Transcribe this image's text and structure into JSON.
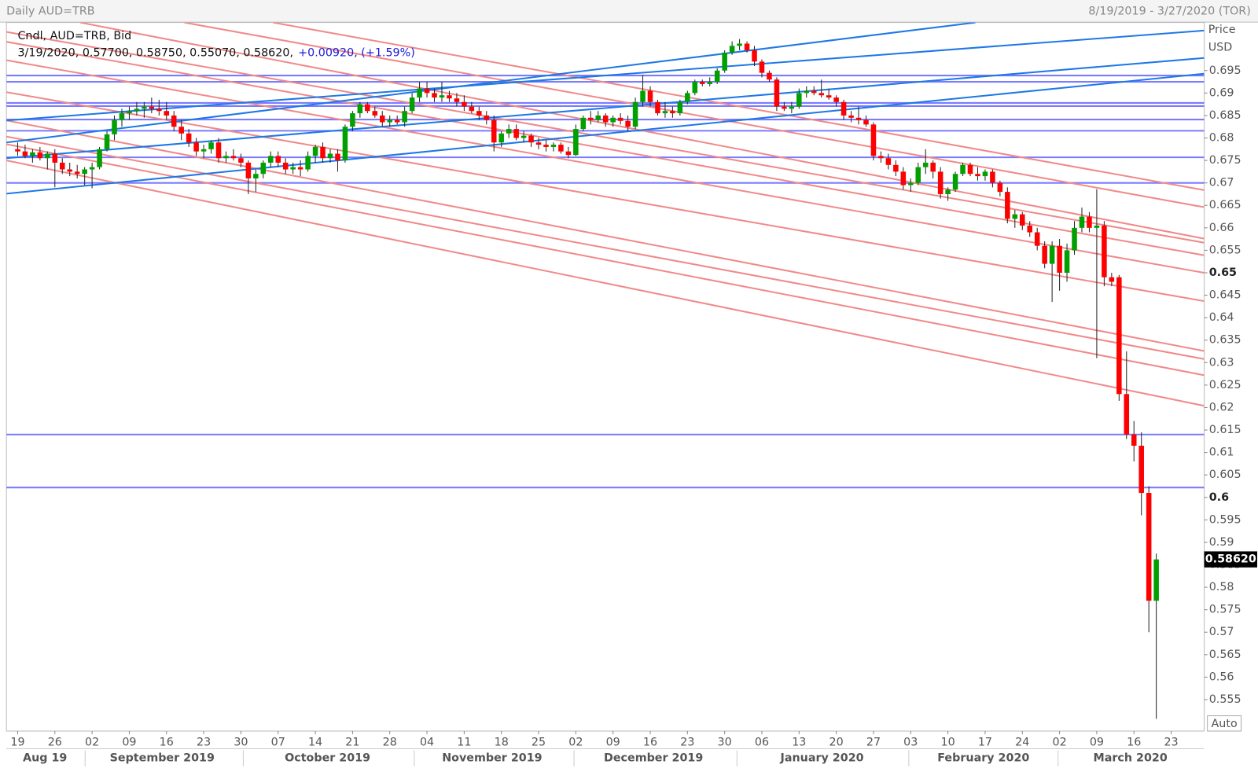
{
  "chart_data": {
    "type": "candlestick",
    "title": "Daily AUD=TRB",
    "date_range": "8/19/2019 - 3/27/2020 (TOR)",
    "legend": "Cndl, AUD=TRB, Bid",
    "info": "3/19/2020, 0.57700, 0.58750, 0.55070, 0.58620,",
    "change": "+0.00920, (+1.59%)",
    "y_label": "Price",
    "unit": "USD",
    "scale_mode": "Auto",
    "x_tick_labels": [
      "19",
      "26",
      "02",
      "09",
      "16",
      "23",
      "30",
      "07",
      "14",
      "21",
      "28",
      "04",
      "11",
      "18",
      "25",
      "02",
      "09",
      "16",
      "23",
      "30",
      "06",
      "13",
      "20",
      "27",
      "03",
      "10",
      "17",
      "24",
      "02",
      "09",
      "16",
      "23"
    ],
    "month_labels": [
      "Aug 19",
      "September 2019",
      "October 2019",
      "November 2019",
      "December 2019",
      "January 2020",
      "February 2020",
      "March 2020"
    ],
    "ylim": [
      0.548,
      0.7057
    ],
    "yticks": [
      0.555,
      0.56,
      0.565,
      0.57,
      0.575,
      0.58,
      0.585,
      0.59,
      0.595,
      0.6,
      0.605,
      0.61,
      0.615,
      0.62,
      0.625,
      0.63,
      0.635,
      0.64,
      0.645,
      0.65,
      0.655,
      0.66,
      0.665,
      0.67,
      0.675,
      0.68,
      0.685,
      0.69,
      0.695
    ],
    "last_price": {
      "value": 0.5862,
      "label": "0.58620"
    },
    "colors": {
      "up": "#00a000",
      "down": "#ff0000",
      "wick": "#222222",
      "level": "#7b7bff",
      "trend_up": "#1e78e6",
      "trend_down": "#f08a8a"
    },
    "ohlc": [
      [
        0.6775,
        0.679,
        0.676,
        0.677
      ],
      [
        0.677,
        0.6785,
        0.6755,
        0.676
      ],
      [
        0.676,
        0.6775,
        0.6745,
        0.6768
      ],
      [
        0.6768,
        0.678,
        0.675,
        0.6755
      ],
      [
        0.6755,
        0.677,
        0.673,
        0.6765
      ],
      [
        0.6765,
        0.6775,
        0.669,
        0.6745
      ],
      [
        0.6745,
        0.6755,
        0.672,
        0.673
      ],
      [
        0.673,
        0.6745,
        0.6715,
        0.6725
      ],
      [
        0.6725,
        0.674,
        0.671,
        0.672
      ],
      [
        0.672,
        0.6735,
        0.6695,
        0.673
      ],
      [
        0.673,
        0.6745,
        0.6688,
        0.6735
      ],
      [
        0.6735,
        0.678,
        0.673,
        0.6775
      ],
      [
        0.6775,
        0.6815,
        0.677,
        0.6808
      ],
      [
        0.6808,
        0.685,
        0.6795,
        0.684
      ],
      [
        0.684,
        0.6865,
        0.6825,
        0.6855
      ],
      [
        0.6855,
        0.687,
        0.684,
        0.686
      ],
      [
        0.686,
        0.688,
        0.685,
        0.6865
      ],
      [
        0.6865,
        0.688,
        0.6845,
        0.687
      ],
      [
        0.687,
        0.689,
        0.6855,
        0.6865
      ],
      [
        0.6865,
        0.6885,
        0.685,
        0.686
      ],
      [
        0.686,
        0.688,
        0.684,
        0.685
      ],
      [
        0.685,
        0.686,
        0.6815,
        0.6825
      ],
      [
        0.6825,
        0.684,
        0.6795,
        0.681
      ],
      [
        0.681,
        0.682,
        0.678,
        0.679
      ],
      [
        0.679,
        0.68,
        0.676,
        0.677
      ],
      [
        0.677,
        0.6785,
        0.6755,
        0.6775
      ],
      [
        0.6775,
        0.6795,
        0.6765,
        0.679
      ],
      [
        0.679,
        0.68,
        0.6745,
        0.6755
      ],
      [
        0.6755,
        0.677,
        0.6745,
        0.676
      ],
      [
        0.676,
        0.6775,
        0.675,
        0.6755
      ],
      [
        0.6755,
        0.6765,
        0.6735,
        0.6745
      ],
      [
        0.6745,
        0.675,
        0.6675,
        0.671
      ],
      [
        0.671,
        0.673,
        0.668,
        0.672
      ],
      [
        0.672,
        0.675,
        0.671,
        0.6745
      ],
      [
        0.6745,
        0.677,
        0.6735,
        0.676
      ],
      [
        0.676,
        0.677,
        0.6735,
        0.6745
      ],
      [
        0.6745,
        0.6755,
        0.672,
        0.673
      ],
      [
        0.673,
        0.6745,
        0.672,
        0.6735
      ],
      [
        0.6735,
        0.675,
        0.6715,
        0.673
      ],
      [
        0.673,
        0.677,
        0.6725,
        0.676
      ],
      [
        0.676,
        0.6785,
        0.6745,
        0.678
      ],
      [
        0.678,
        0.679,
        0.6745,
        0.6755
      ],
      [
        0.6755,
        0.6775,
        0.6745,
        0.6765
      ],
      [
        0.6765,
        0.6775,
        0.6725,
        0.675
      ],
      [
        0.675,
        0.683,
        0.6745,
        0.6825
      ],
      [
        0.6825,
        0.686,
        0.6815,
        0.6855
      ],
      [
        0.6855,
        0.688,
        0.6845,
        0.6875
      ],
      [
        0.6875,
        0.688,
        0.6855,
        0.686
      ],
      [
        0.686,
        0.687,
        0.6845,
        0.685
      ],
      [
        0.685,
        0.686,
        0.6825,
        0.6835
      ],
      [
        0.6835,
        0.685,
        0.6825,
        0.684
      ],
      [
        0.684,
        0.685,
        0.683,
        0.6835
      ],
      [
        0.6835,
        0.687,
        0.6825,
        0.686
      ],
      [
        0.686,
        0.69,
        0.6855,
        0.689
      ],
      [
        0.689,
        0.6925,
        0.688,
        0.691
      ],
      [
        0.691,
        0.6925,
        0.689,
        0.69
      ],
      [
        0.69,
        0.691,
        0.688,
        0.689
      ],
      [
        0.689,
        0.6925,
        0.688,
        0.6895
      ],
      [
        0.6895,
        0.6905,
        0.688,
        0.6888
      ],
      [
        0.6888,
        0.69,
        0.687,
        0.688
      ],
      [
        0.688,
        0.6895,
        0.686,
        0.687
      ],
      [
        0.687,
        0.688,
        0.6855,
        0.686
      ],
      [
        0.686,
        0.687,
        0.684,
        0.685
      ],
      [
        0.685,
        0.686,
        0.683,
        0.684
      ],
      [
        0.684,
        0.685,
        0.677,
        0.679
      ],
      [
        0.679,
        0.6815,
        0.678,
        0.681
      ],
      [
        0.681,
        0.683,
        0.68,
        0.682
      ],
      [
        0.682,
        0.683,
        0.6795,
        0.68
      ],
      [
        0.68,
        0.6815,
        0.679,
        0.6805
      ],
      [
        0.6805,
        0.681,
        0.678,
        0.679
      ],
      [
        0.679,
        0.68,
        0.6775,
        0.6785
      ],
      [
        0.6785,
        0.6795,
        0.677,
        0.678
      ],
      [
        0.678,
        0.679,
        0.677,
        0.6785
      ],
      [
        0.6785,
        0.679,
        0.6765,
        0.677
      ],
      [
        0.677,
        0.678,
        0.6755,
        0.6762
      ],
      [
        0.6762,
        0.683,
        0.676,
        0.682
      ],
      [
        0.682,
        0.685,
        0.6815,
        0.6845
      ],
      [
        0.6845,
        0.686,
        0.683,
        0.684
      ],
      [
        0.684,
        0.686,
        0.6835,
        0.685
      ],
      [
        0.685,
        0.6855,
        0.6825,
        0.6835
      ],
      [
        0.6835,
        0.685,
        0.6825,
        0.6845
      ],
      [
        0.6845,
        0.6855,
        0.683,
        0.6838
      ],
      [
        0.6838,
        0.685,
        0.6815,
        0.6825
      ],
      [
        0.6825,
        0.689,
        0.682,
        0.688
      ],
      [
        0.688,
        0.694,
        0.687,
        0.6905
      ],
      [
        0.6905,
        0.6915,
        0.687,
        0.688
      ],
      [
        0.688,
        0.6885,
        0.685,
        0.6855
      ],
      [
        0.6855,
        0.688,
        0.6845,
        0.686
      ],
      [
        0.686,
        0.687,
        0.6845,
        0.6855
      ],
      [
        0.6855,
        0.6885,
        0.685,
        0.688
      ],
      [
        0.688,
        0.6905,
        0.6875,
        0.69
      ],
      [
        0.69,
        0.693,
        0.6895,
        0.6925
      ],
      [
        0.6925,
        0.693,
        0.6915,
        0.692
      ],
      [
        0.692,
        0.6935,
        0.6915,
        0.6925
      ],
      [
        0.6925,
        0.6955,
        0.692,
        0.695
      ],
      [
        0.695,
        0.6995,
        0.6945,
        0.699
      ],
      [
        0.699,
        0.7015,
        0.6985,
        0.7005
      ],
      [
        0.7005,
        0.702,
        0.6995,
        0.701
      ],
      [
        0.701,
        0.7015,
        0.699,
        0.6995
      ],
      [
        0.6995,
        0.7005,
        0.696,
        0.697
      ],
      [
        0.697,
        0.6975,
        0.6935,
        0.6945
      ],
      [
        0.6945,
        0.695,
        0.6925,
        0.693
      ],
      [
        0.693,
        0.6935,
        0.686,
        0.687
      ],
      [
        0.687,
        0.688,
        0.686,
        0.6865
      ],
      [
        0.6865,
        0.688,
        0.6855,
        0.687
      ],
      [
        0.687,
        0.691,
        0.6865,
        0.69
      ],
      [
        0.69,
        0.6915,
        0.689,
        0.6905
      ],
      [
        0.6905,
        0.6915,
        0.6895,
        0.69
      ],
      [
        0.69,
        0.693,
        0.689,
        0.6895
      ],
      [
        0.6895,
        0.691,
        0.6885,
        0.689
      ],
      [
        0.689,
        0.6895,
        0.687,
        0.688
      ],
      [
        0.688,
        0.6885,
        0.684,
        0.685
      ],
      [
        0.685,
        0.686,
        0.6835,
        0.6845
      ],
      [
        0.6845,
        0.687,
        0.683,
        0.684
      ],
      [
        0.684,
        0.685,
        0.6825,
        0.683
      ],
      [
        0.683,
        0.6835,
        0.675,
        0.676
      ],
      [
        0.676,
        0.677,
        0.6745,
        0.6755
      ],
      [
        0.6755,
        0.6765,
        0.673,
        0.674
      ],
      [
        0.674,
        0.675,
        0.6715,
        0.6725
      ],
      [
        0.6725,
        0.6735,
        0.6685,
        0.6695
      ],
      [
        0.6695,
        0.671,
        0.668,
        0.67
      ],
      [
        0.67,
        0.6745,
        0.6695,
        0.6735
      ],
      [
        0.6735,
        0.6775,
        0.672,
        0.6745
      ],
      [
        0.6745,
        0.675,
        0.671,
        0.6725
      ],
      [
        0.6725,
        0.6735,
        0.6665,
        0.6675
      ],
      [
        0.6675,
        0.669,
        0.666,
        0.6685
      ],
      [
        0.6685,
        0.6725,
        0.668,
        0.672
      ],
      [
        0.672,
        0.6745,
        0.6715,
        0.674
      ],
      [
        0.674,
        0.6745,
        0.6715,
        0.672
      ],
      [
        0.672,
        0.6735,
        0.6705,
        0.6715
      ],
      [
        0.6715,
        0.673,
        0.6705,
        0.6725
      ],
      [
        0.6725,
        0.673,
        0.669,
        0.67
      ],
      [
        0.67,
        0.6705,
        0.667,
        0.668
      ],
      [
        0.668,
        0.669,
        0.661,
        0.662
      ],
      [
        0.662,
        0.664,
        0.66,
        0.663
      ],
      [
        0.663,
        0.6635,
        0.6595,
        0.6605
      ],
      [
        0.6605,
        0.6615,
        0.658,
        0.659
      ],
      [
        0.659,
        0.66,
        0.655,
        0.656
      ],
      [
        0.656,
        0.657,
        0.651,
        0.652
      ],
      [
        0.652,
        0.657,
        0.6435,
        0.656
      ],
      [
        0.656,
        0.6575,
        0.646,
        0.65
      ],
      [
        0.65,
        0.6565,
        0.648,
        0.655
      ],
      [
        0.655,
        0.6615,
        0.654,
        0.66
      ],
      [
        0.66,
        0.6645,
        0.659,
        0.6625
      ],
      [
        0.6625,
        0.6635,
        0.659,
        0.66
      ],
      [
        0.66,
        0.6686,
        0.631,
        0.6605
      ],
      [
        0.6605,
        0.6615,
        0.647,
        0.649
      ],
      [
        0.649,
        0.65,
        0.647,
        0.648
      ],
      [
        0.649,
        0.6495,
        0.6215,
        0.623
      ],
      [
        0.623,
        0.6325,
        0.613,
        0.614
      ],
      [
        0.614,
        0.617,
        0.608,
        0.6115
      ],
      [
        0.6115,
        0.6145,
        0.596,
        0.601
      ],
      [
        0.601,
        0.6025,
        0.57,
        0.577
      ],
      [
        0.577,
        0.5875,
        0.5507,
        0.5862
      ]
    ],
    "horizontal_levels": [
      0.6939,
      0.6925,
      0.6878,
      0.6871,
      0.6841,
      0.6816,
      0.6757,
      0.67,
      0.614,
      0.6022
    ],
    "rising_lines": [
      {
        "from": [
          -1.5,
          0.6839
        ],
        "to": [
          159.4,
          0.7039
        ]
      },
      {
        "from": [
          -1.5,
          0.6755
        ],
        "to": [
          159.4,
          0.6978
        ]
      },
      {
        "from": [
          -1.5,
          0.6676
        ],
        "to": [
          159.4,
          0.6943
        ]
      },
      {
        "from": [
          -1.5,
          0.679
        ],
        "to": [
          128.7,
          0.7057
        ]
      }
    ],
    "falling_lines": [
      {
        "from": [
          34.3,
          0.7057
        ],
        "to": [
          159.4,
          0.6684
        ]
      },
      {
        "from": [
          22.4,
          0.7057
        ],
        "to": [
          159.4,
          0.6646
        ]
      },
      {
        "from": [
          8.4,
          0.7057
        ],
        "to": [
          159.4,
          0.6576
        ]
      },
      {
        "from": [
          -1.5,
          0.7036
        ],
        "to": [
          159.4,
          0.6567
        ]
      },
      {
        "from": [
          -1.5,
          0.7014
        ],
        "to": [
          159.4,
          0.6539
        ]
      },
      {
        "from": [
          -1.5,
          0.6973
        ],
        "to": [
          159.4,
          0.65
        ]
      },
      {
        "from": [
          -1.5,
          0.6902
        ],
        "to": [
          159.4,
          0.6437
        ]
      },
      {
        "from": [
          -1.5,
          0.6839
        ],
        "to": [
          159.4,
          0.6326
        ]
      },
      {
        "from": [
          -1.5,
          0.6803
        ],
        "to": [
          159.4,
          0.6308
        ]
      },
      {
        "from": [
          -1.5,
          0.6786
        ],
        "to": [
          159.4,
          0.6272
        ]
      },
      {
        "from": [
          -1.5,
          0.675
        ],
        "to": [
          159.4,
          0.6204
        ]
      }
    ]
  }
}
